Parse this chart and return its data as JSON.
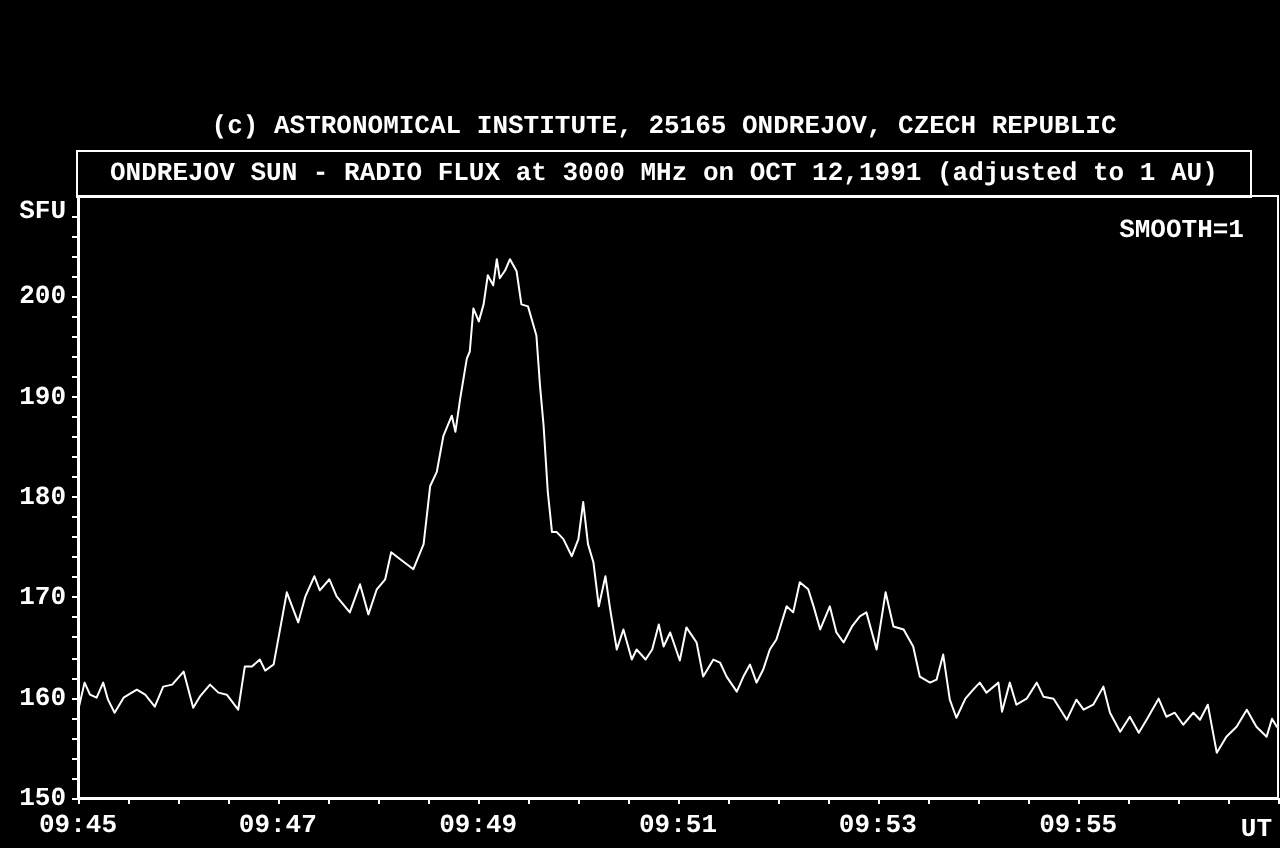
{
  "chart_data": {
    "type": "line",
    "title": "ONDREJOV SUN - RADIO FLUX at 3000 MHz on OCT 12,1991 (adjusted to 1 AU)",
    "xlabel": "UT",
    "ylabel": "SFU",
    "annotations": [
      "(c) ASTRONOMICAL INSTITUTE, 25165 ONDREJOV, CZECH REPUBLIC",
      "SMOOTH=1"
    ],
    "x": [
      9.75,
      9.7511,
      9.752,
      9.7531,
      9.7542,
      9.755,
      9.7561,
      9.7576,
      9.7598,
      9.7612,
      9.7628,
      9.7642,
      9.7657,
      9.7676,
      9.7692,
      9.7703,
      9.772,
      9.7734,
      9.7748,
      9.7767,
      9.7778,
      9.779,
      9.7803,
      9.7812,
      9.7826,
      9.7848,
      9.7867,
      9.7879,
      9.7894,
      9.7903,
      9.7919,
      9.7931,
      9.7953,
      9.797,
      9.7984,
      9.7998,
      9.8012,
      9.8022,
      9.8037,
      9.8059,
      9.8076,
      9.8087,
      9.8098,
      9.8109,
      9.8123,
      9.8129,
      9.8137,
      9.8148,
      9.8153,
      9.8159,
      9.8168,
      9.8176,
      9.8183,
      9.8192,
      9.8198,
      9.8203,
      9.8212,
      9.822,
      9.8231,
      9.8239,
      9.825,
      9.8264,
      9.827,
      9.8276,
      9.8283,
      9.829,
      9.8298,
      9.8309,
      9.8323,
      9.8334,
      9.8342,
      9.835,
      9.8359,
      9.8368,
      9.8379,
      9.8387,
      9.8398,
      9.8409,
      9.8423,
      9.8431,
      9.8446,
      9.8457,
      9.8468,
      9.8476,
      9.8487,
      9.8503,
      9.8514,
      9.8531,
      9.8542,
      9.8559,
      9.857,
      9.8581,
      9.8598,
      9.8609,
      9.862,
      9.8631,
      9.8642,
      9.8653,
      9.8664,
      9.8681,
      9.8692,
      9.8703,
      9.8717,
      9.8726,
      9.8737,
      9.8753,
      9.8764,
      9.8776,
      9.879,
      9.8803,
      9.8814,
      9.8831,
      9.8846,
      9.8859,
      9.8876,
      9.8892,
      9.8903,
      9.892,
      9.8931,
      9.8942,
      9.8953,
      9.8964,
      9.8979,
      9.8992,
      9.9003,
      9.9014,
      9.9034,
      9.904,
      9.9053,
      9.9064,
      9.9081,
      9.9098,
      9.9109,
      9.9126,
      9.9148,
      9.9164,
      9.9176,
      9.9192,
      9.9209,
      9.922,
      9.9237,
      9.9253,
      9.9268,
      9.9281,
      9.9301,
      9.9314,
      9.9328,
      9.9342,
      9.9359,
      9.937,
      9.9383,
      9.9398,
      9.9414,
      9.9431,
      9.9448,
      9.9464,
      9.9481,
      9.949,
      9.9498
    ],
    "series": [
      {
        "color": "#ffffff",
        "values": [
          158.7,
          161.5,
          160.3,
          160.0,
          161.5,
          159.8,
          158.5,
          160.0,
          160.8,
          160.3,
          159.1,
          161.1,
          161.3,
          162.6,
          159.0,
          160.1,
          161.3,
          160.5,
          160.3,
          158.8,
          163.1,
          163.1,
          163.8,
          162.7,
          163.3,
          170.5,
          167.5,
          170.1,
          172.1,
          170.7,
          171.8,
          170.1,
          168.5,
          171.3,
          168.3,
          170.8,
          171.8,
          174.5,
          173.8,
          172.8,
          175.3,
          181.1,
          182.5,
          186.1,
          188.1,
          186.5,
          189.8,
          193.8,
          194.5,
          198.8,
          197.5,
          199.2,
          202.1,
          201.1,
          203.7,
          201.8,
          202.6,
          203.7,
          202.5,
          199.2,
          199.0,
          196.1,
          191.1,
          187.1,
          180.5,
          176.5,
          176.5,
          175.8,
          174.1,
          175.8,
          179.5,
          175.3,
          173.5,
          169.1,
          172.1,
          168.8,
          164.8,
          166.8,
          163.8,
          164.8,
          163.8,
          164.8,
          167.3,
          165.1,
          166.5,
          163.7,
          167.0,
          165.5,
          162.1,
          163.8,
          163.5,
          162.1,
          160.6,
          162.1,
          163.3,
          161.5,
          162.8,
          164.8,
          165.8,
          169.1,
          168.5,
          171.5,
          170.8,
          169.1,
          166.8,
          169.1,
          166.5,
          165.5,
          167.1,
          168.1,
          168.5,
          164.8,
          170.5,
          167.1,
          166.8,
          165.1,
          162.1,
          161.5,
          161.8,
          164.3,
          159.8,
          158.0,
          159.9,
          160.8,
          161.5,
          160.5,
          161.5,
          158.6,
          161.5,
          159.3,
          159.9,
          161.5,
          160.1,
          159.9,
          157.8,
          159.8,
          158.8,
          159.3,
          161.1,
          158.5,
          156.6,
          158.1,
          156.5,
          157.8,
          159.9,
          158.1,
          158.5,
          157.3,
          158.5,
          157.8,
          159.3,
          154.5,
          156.1,
          157.1,
          158.8,
          157.1,
          156.1,
          157.9,
          157.1
        ]
      }
    ],
    "xlim": [
      9.75,
      9.95
    ],
    "xticks": [
      {
        "value": 9.75,
        "label": "09:45"
      },
      {
        "value": 9.7583,
        "label": null
      },
      {
        "value": 9.7667,
        "label": null
      },
      {
        "value": 9.775,
        "label": null
      },
      {
        "value": 9.7833,
        "label": "09:47"
      },
      {
        "value": 9.7917,
        "label": null
      },
      {
        "value": 9.8,
        "label": null
      },
      {
        "value": 9.8083,
        "label": null
      },
      {
        "value": 9.8167,
        "label": "09:49"
      },
      {
        "value": 9.825,
        "label": null
      },
      {
        "value": 9.8333,
        "label": null
      },
      {
        "value": 9.8417,
        "label": null
      },
      {
        "value": 9.85,
        "label": "09:51"
      },
      {
        "value": 9.8583,
        "label": null
      },
      {
        "value": 9.8667,
        "label": null
      },
      {
        "value": 9.875,
        "label": null
      },
      {
        "value": 9.8833,
        "label": "09:53"
      },
      {
        "value": 9.8917,
        "label": null
      },
      {
        "value": 9.9,
        "label": null
      },
      {
        "value": 9.9083,
        "label": null
      },
      {
        "value": 9.9167,
        "label": "09:55"
      },
      {
        "value": 9.925,
        "label": null
      },
      {
        "value": 9.9333,
        "label": null
      },
      {
        "value": 9.9417,
        "label": null
      },
      {
        "value": 9.95,
        "label": null
      }
    ],
    "ylim": [
      150,
      210
    ],
    "yticks": [
      150,
      {
        "value": 152,
        "label": null
      },
      {
        "value": 154,
        "label": null
      },
      {
        "value": 156,
        "label": null
      },
      {
        "value": 158,
        "label": null
      },
      160,
      {
        "value": 162,
        "label": null
      },
      {
        "value": 164,
        "label": null
      },
      {
        "value": 166,
        "label": null
      },
      {
        "value": 168,
        "label": null
      },
      170,
      {
        "value": 172,
        "label": null
      },
      {
        "value": 174,
        "label": null
      },
      {
        "value": 176,
        "label": null
      },
      {
        "value": 178,
        "label": null
      },
      180,
      {
        "value": 182,
        "label": null
      },
      {
        "value": 184,
        "label": null
      },
      {
        "value": 186,
        "label": null
      },
      {
        "value": 188,
        "label": null
      },
      190,
      {
        "value": 192,
        "label": null
      },
      {
        "value": 194,
        "label": null
      },
      {
        "value": 196,
        "label": null
      },
      {
        "value": 198,
        "label": null
      },
      200,
      {
        "value": 202,
        "label": null
      },
      {
        "value": 204,
        "label": null
      },
      {
        "value": 206,
        "label": null
      },
      {
        "value": 208,
        "label": null
      }
    ],
    "grid": false,
    "marker": "none",
    "line_style": "solid"
  }
}
